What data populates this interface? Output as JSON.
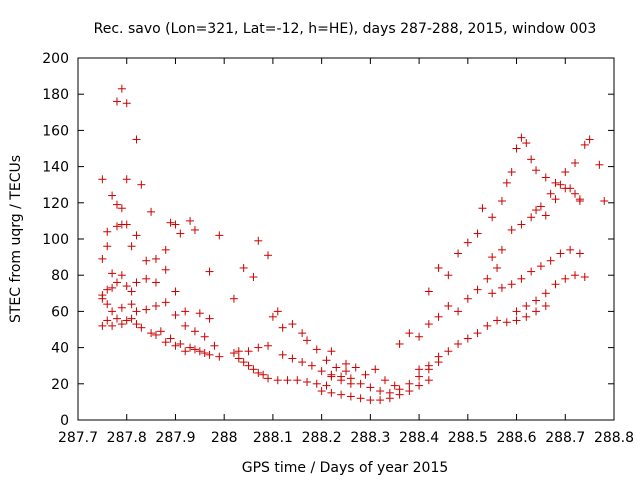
{
  "chart_data": {
    "type": "scatter",
    "title": "Rec. savo (Lon=321, Lat=-12, h=HE), days 287-288, 2015, window 003",
    "xlabel": "GPS time / Days of year 2015",
    "ylabel": "STEC from uqrg / TECUs",
    "xlim": [
      287.7,
      288.8
    ],
    "ylim": [
      0,
      200
    ],
    "x_ticks": [
      287.7,
      287.8,
      287.9,
      288.0,
      288.1,
      288.2,
      288.3,
      288.4,
      288.5,
      288.6,
      288.7,
      288.8
    ],
    "x_tick_labels": [
      "287.7",
      "287.8",
      "287.9",
      "288",
      "288.1",
      "288.2",
      "288.3",
      "288.4",
      "288.5",
      "288.6",
      "288.7",
      "288.8"
    ],
    "y_ticks": [
      0,
      20,
      40,
      60,
      80,
      100,
      120,
      140,
      160,
      180,
      200
    ],
    "y_tick_labels": [
      "0",
      "20",
      "40",
      "60",
      "80",
      "100",
      "120",
      "140",
      "160",
      "180",
      "200"
    ],
    "grid": false,
    "legend": "none",
    "marker": "+",
    "marker_color": "#cc0000",
    "series": [
      {
        "points": [
          [
            287.75,
            133
          ],
          [
            287.77,
            124
          ],
          [
            287.78,
            176
          ],
          [
            287.79,
            183
          ],
          [
            287.8,
            175
          ],
          [
            287.8,
            133
          ],
          [
            287.82,
            155
          ],
          [
            287.83,
            130
          ],
          [
            287.78,
            119
          ],
          [
            287.76,
            104
          ],
          [
            287.79,
            117
          ],
          [
            287.8,
            108
          ],
          [
            287.75,
            89
          ],
          [
            287.76,
            96
          ],
          [
            287.77,
            81
          ],
          [
            287.78,
            107
          ],
          [
            287.79,
            108
          ],
          [
            287.81,
            96
          ],
          [
            287.82,
            102
          ],
          [
            287.84,
            88
          ],
          [
            287.85,
            115
          ],
          [
            287.86,
            89
          ],
          [
            287.88,
            94
          ],
          [
            287.89,
            109
          ],
          [
            287.9,
            108
          ],
          [
            287.91,
            103
          ],
          [
            287.93,
            110
          ],
          [
            287.94,
            105
          ],
          [
            287.97,
            82
          ],
          [
            287.99,
            102
          ],
          [
            287.75,
            69
          ],
          [
            287.76,
            72
          ],
          [
            287.77,
            73
          ],
          [
            287.78,
            76
          ],
          [
            287.79,
            80
          ],
          [
            287.8,
            74
          ],
          [
            287.81,
            71
          ],
          [
            287.82,
            76
          ],
          [
            287.84,
            78
          ],
          [
            287.86,
            76
          ],
          [
            287.88,
            83
          ],
          [
            287.9,
            71
          ],
          [
            287.92,
            60
          ],
          [
            287.95,
            59
          ],
          [
            287.97,
            56
          ],
          [
            287.75,
            67
          ],
          [
            287.76,
            64
          ],
          [
            287.77,
            60
          ],
          [
            287.79,
            62
          ],
          [
            287.81,
            64
          ],
          [
            287.82,
            60
          ],
          [
            287.84,
            61
          ],
          [
            287.86,
            63
          ],
          [
            287.88,
            65
          ],
          [
            287.9,
            58
          ],
          [
            287.92,
            52
          ],
          [
            287.94,
            49
          ],
          [
            287.96,
            46
          ],
          [
            287.98,
            41
          ],
          [
            287.75,
            52
          ],
          [
            287.76,
            55
          ],
          [
            287.77,
            52
          ],
          [
            287.78,
            56
          ],
          [
            287.79,
            53
          ],
          [
            287.8,
            55
          ],
          [
            287.81,
            56
          ],
          [
            287.82,
            53
          ],
          [
            287.83,
            51
          ],
          [
            287.85,
            48
          ],
          [
            287.87,
            49
          ],
          [
            287.89,
            45
          ],
          [
            287.91,
            42
          ],
          [
            287.93,
            40
          ],
          [
            287.95,
            38
          ],
          [
            287.97,
            36
          ],
          [
            287.99,
            35
          ],
          [
            287.86,
            47
          ],
          [
            287.88,
            43
          ],
          [
            287.9,
            41
          ],
          [
            287.92,
            38
          ],
          [
            287.94,
            39
          ],
          [
            287.96,
            37
          ],
          [
            288.02,
            67
          ],
          [
            288.04,
            84
          ],
          [
            288.06,
            79
          ],
          [
            288.07,
            99
          ],
          [
            288.09,
            91
          ],
          [
            288.02,
            37
          ],
          [
            288.03,
            34
          ],
          [
            288.04,
            32
          ],
          [
            288.05,
            30
          ],
          [
            288.06,
            28
          ],
          [
            288.07,
            26
          ],
          [
            288.08,
            25
          ],
          [
            288.09,
            23
          ],
          [
            288.11,
            22
          ],
          [
            288.13,
            22
          ],
          [
            288.15,
            22
          ],
          [
            288.17,
            21
          ],
          [
            288.19,
            20
          ],
          [
            288.21,
            19
          ],
          [
            288.03,
            38
          ],
          [
            288.05,
            38
          ],
          [
            288.07,
            40
          ],
          [
            288.09,
            41
          ],
          [
            288.1,
            57
          ],
          [
            288.11,
            60
          ],
          [
            288.12,
            51
          ],
          [
            288.14,
            53
          ],
          [
            288.16,
            48
          ],
          [
            288.17,
            44
          ],
          [
            288.19,
            39
          ],
          [
            288.21,
            33
          ],
          [
            288.23,
            29
          ],
          [
            288.25,
            27
          ],
          [
            288.12,
            36
          ],
          [
            288.14,
            34
          ],
          [
            288.16,
            32
          ],
          [
            288.18,
            30
          ],
          [
            288.2,
            27
          ],
          [
            288.22,
            24
          ],
          [
            288.24,
            22
          ],
          [
            288.26,
            20
          ],
          [
            288.2,
            16
          ],
          [
            288.22,
            15
          ],
          [
            288.24,
            14
          ],
          [
            288.26,
            13
          ],
          [
            288.28,
            12
          ],
          [
            288.3,
            11
          ],
          [
            288.32,
            11
          ],
          [
            288.34,
            12
          ],
          [
            288.36,
            14
          ],
          [
            288.38,
            16
          ],
          [
            288.4,
            19
          ],
          [
            288.42,
            22
          ],
          [
            288.22,
            25
          ],
          [
            288.24,
            24
          ],
          [
            288.26,
            23
          ],
          [
            288.28,
            20
          ],
          [
            288.3,
            18
          ],
          [
            288.32,
            16
          ],
          [
            288.34,
            15
          ],
          [
            288.36,
            17
          ],
          [
            288.38,
            20
          ],
          [
            288.4,
            24
          ],
          [
            288.42,
            28
          ],
          [
            288.44,
            32
          ],
          [
            288.22,
            38
          ],
          [
            288.25,
            31
          ],
          [
            288.27,
            29
          ],
          [
            288.29,
            25
          ],
          [
            288.31,
            28
          ],
          [
            288.33,
            22
          ],
          [
            288.35,
            19
          ],
          [
            288.36,
            42
          ],
          [
            288.38,
            48
          ],
          [
            288.4,
            46
          ],
          [
            288.42,
            53
          ],
          [
            288.44,
            57
          ],
          [
            288.46,
            63
          ],
          [
            288.48,
            60
          ],
          [
            288.5,
            67
          ],
          [
            288.52,
            72
          ],
          [
            288.54,
            78
          ],
          [
            288.56,
            84
          ],
          [
            288.4,
            28
          ],
          [
            288.42,
            30
          ],
          [
            288.44,
            35
          ],
          [
            288.46,
            38
          ],
          [
            288.48,
            42
          ],
          [
            288.5,
            45
          ],
          [
            288.52,
            48
          ],
          [
            288.54,
            52
          ],
          [
            288.56,
            55
          ],
          [
            288.58,
            54
          ],
          [
            288.6,
            55
          ],
          [
            288.62,
            57
          ],
          [
            288.64,
            60
          ],
          [
            288.66,
            63
          ],
          [
            288.42,
            71
          ],
          [
            288.44,
            84
          ],
          [
            288.46,
            80
          ],
          [
            288.48,
            92
          ],
          [
            288.5,
            98
          ],
          [
            288.52,
            103
          ],
          [
            288.53,
            117
          ],
          [
            288.55,
            112
          ],
          [
            288.57,
            121
          ],
          [
            288.58,
            131
          ],
          [
            288.59,
            137
          ],
          [
            288.6,
            150
          ],
          [
            288.61,
            156
          ],
          [
            288.62,
            153
          ],
          [
            288.63,
            144
          ],
          [
            288.64,
            138
          ],
          [
            288.66,
            134
          ],
          [
            288.68,
            131
          ],
          [
            288.7,
            128
          ],
          [
            288.72,
            125
          ],
          [
            288.73,
            122
          ],
          [
            288.55,
            90
          ],
          [
            288.57,
            94
          ],
          [
            288.59,
            105
          ],
          [
            288.61,
            108
          ],
          [
            288.63,
            112
          ],
          [
            288.65,
            118
          ],
          [
            288.67,
            125
          ],
          [
            288.69,
            130
          ],
          [
            288.71,
            128
          ],
          [
            288.73,
            121
          ],
          [
            288.55,
            70
          ],
          [
            288.57,
            73
          ],
          [
            288.59,
            75
          ],
          [
            288.61,
            78
          ],
          [
            288.63,
            82
          ],
          [
            288.65,
            85
          ],
          [
            288.67,
            88
          ],
          [
            288.69,
            92
          ],
          [
            288.71,
            94
          ],
          [
            288.73,
            92
          ],
          [
            288.6,
            60
          ],
          [
            288.62,
            63
          ],
          [
            288.64,
            66
          ],
          [
            288.66,
            70
          ],
          [
            288.68,
            75
          ],
          [
            288.7,
            78
          ],
          [
            288.72,
            80
          ],
          [
            288.74,
            79
          ],
          [
            288.64,
            116
          ],
          [
            288.66,
            113
          ],
          [
            288.68,
            122
          ],
          [
            288.7,
            137
          ],
          [
            288.72,
            142
          ],
          [
            288.74,
            152
          ],
          [
            288.75,
            155
          ],
          [
            288.77,
            141
          ],
          [
            288.78,
            121
          ]
        ]
      }
    ]
  }
}
